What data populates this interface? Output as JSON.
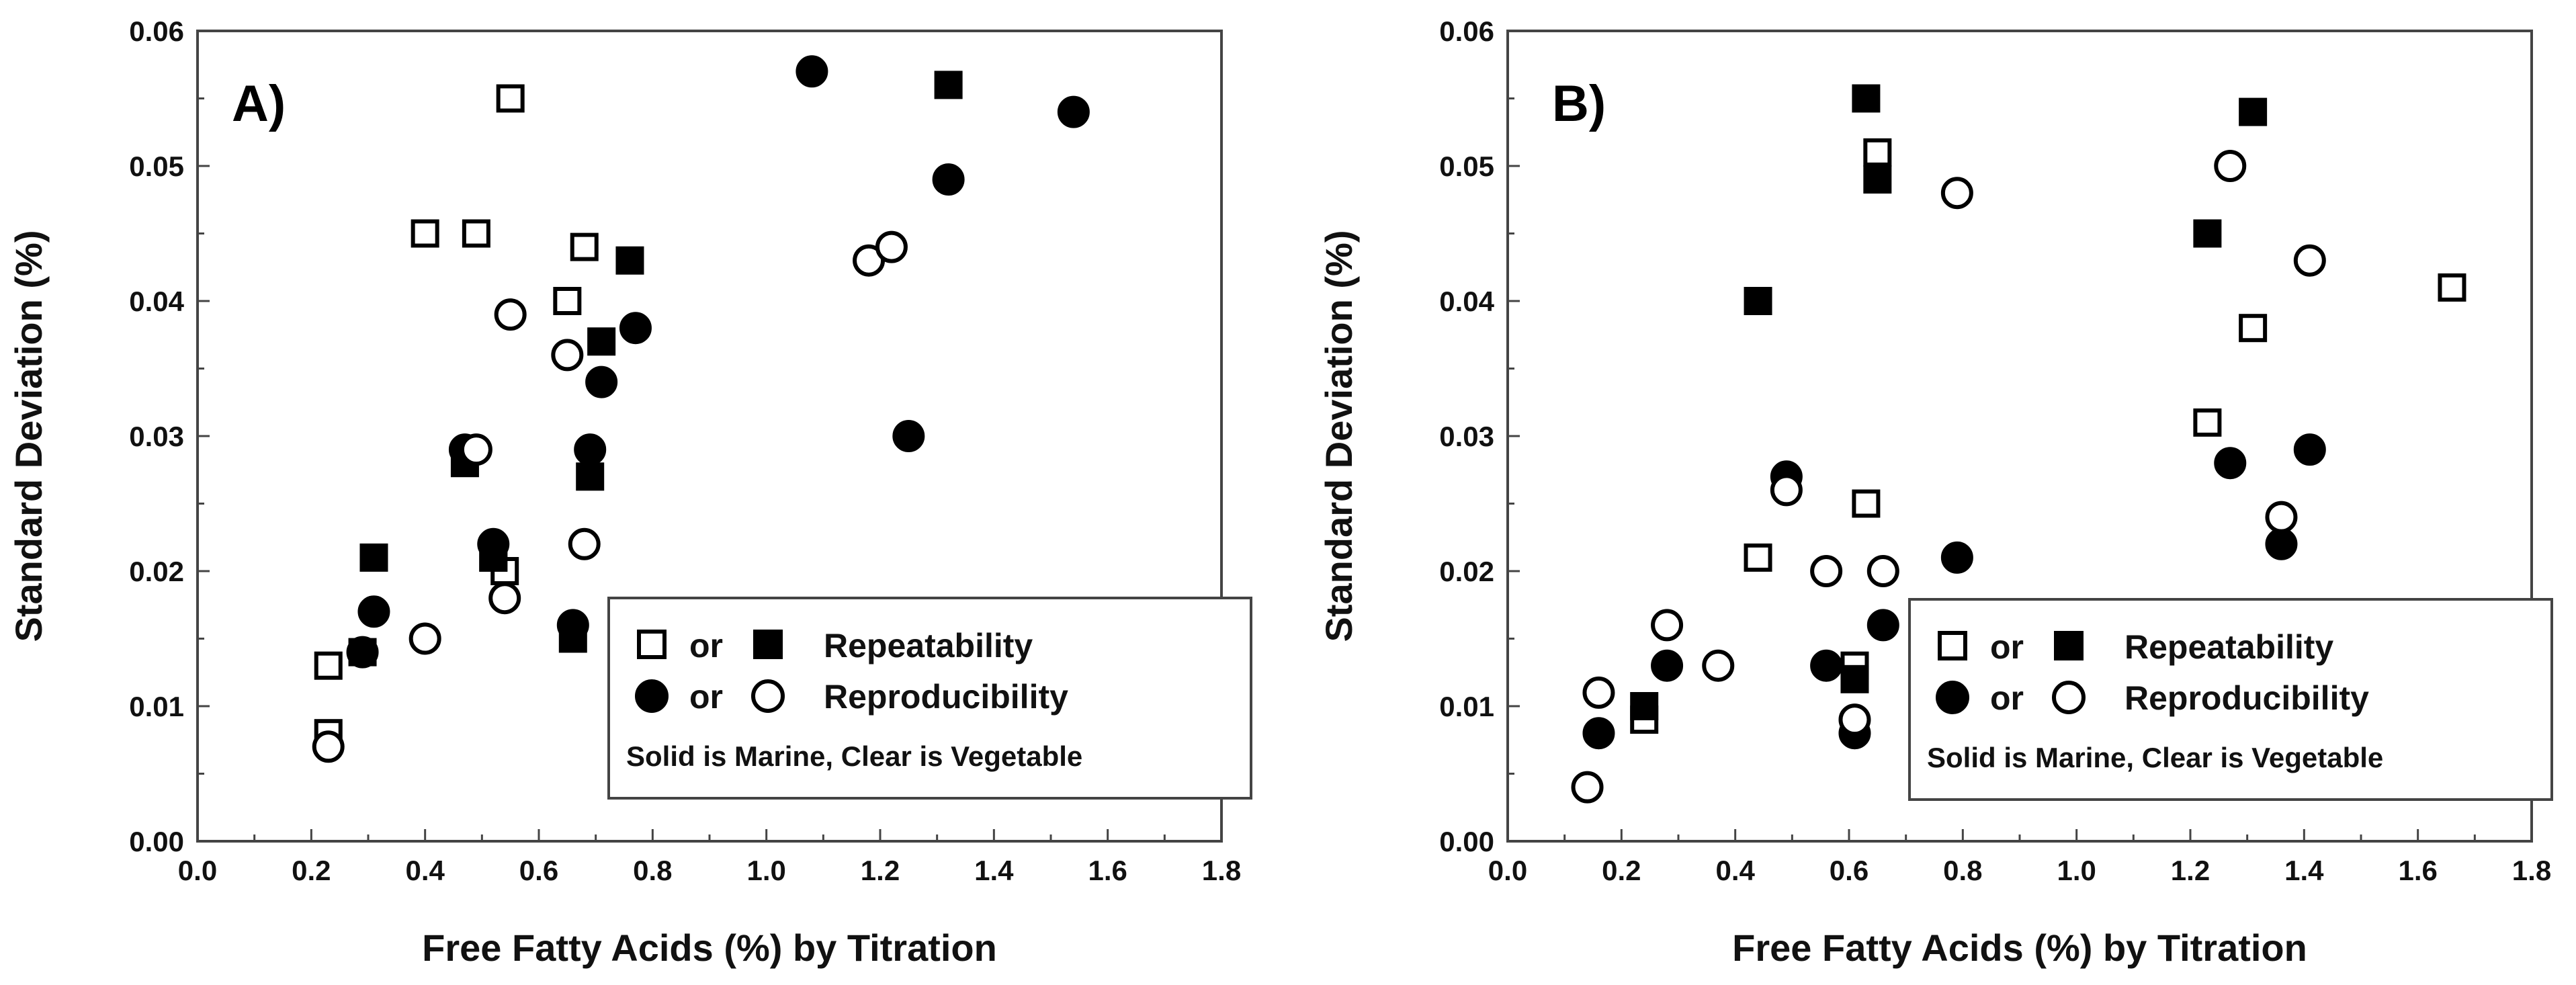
{
  "chart_data": [
    {
      "type": "scatter",
      "panel_label": "A)",
      "xlabel": "Free Fatty Acids (%) by Titration",
      "ylabel": "Standard Deviation (%)",
      "xlim": [
        0,
        1.8
      ],
      "ylim": [
        0,
        0.06
      ],
      "xticks": [
        "0.0",
        "0.2",
        "0.4",
        "0.6",
        "0.8",
        "1.0",
        "1.2",
        "1.4",
        "1.6",
        "1.8"
      ],
      "yticks": [
        "0.00",
        "0.01",
        "0.02",
        "0.03",
        "0.04",
        "0.05",
        "0.06"
      ],
      "legend": {
        "position": "bottom-right",
        "or_text": "or",
        "rows": [
          {
            "label": "Repeatability",
            "first": "square-open",
            "second": "square-filled"
          },
          {
            "label": "Reproducibility",
            "first": "circle-filled",
            "second": "circle-open"
          }
        ],
        "note": "Solid is Marine, Clear is Vegetable"
      },
      "series": [
        {
          "name": "Repeatability (Vegetable)",
          "marker": "square-open",
          "x": [
            0.23,
            0.23,
            0.4,
            0.49,
            0.55,
            0.54,
            0.52,
            0.65,
            0.68
          ],
          "y": [
            0.013,
            0.008,
            0.045,
            0.045,
            0.055,
            0.02,
            0.021,
            0.04,
            0.044
          ]
        },
        {
          "name": "Repeatability (Marine)",
          "marker": "square-filled",
          "x": [
            0.29,
            0.31,
            0.47,
            0.52,
            0.66,
            0.69,
            0.71,
            0.76,
            1.32
          ],
          "y": [
            0.014,
            0.021,
            0.028,
            0.021,
            0.015,
            0.027,
            0.037,
            0.043,
            0.056
          ]
        },
        {
          "name": "Reproducibility (Marine)",
          "marker": "circle-filled",
          "x": [
            0.29,
            0.31,
            0.47,
            0.52,
            0.66,
            0.69,
            0.71,
            0.77,
            1.08,
            1.25,
            1.32,
            1.54
          ],
          "y": [
            0.014,
            0.017,
            0.029,
            0.022,
            0.016,
            0.029,
            0.034,
            0.038,
            0.057,
            0.03,
            0.049,
            0.054
          ]
        },
        {
          "name": "Reproducibility (Vegetable)",
          "marker": "circle-open",
          "x": [
            0.23,
            0.4,
            0.49,
            0.54,
            0.55,
            0.65,
            0.68,
            1.18,
            1.22
          ],
          "y": [
            0.007,
            0.015,
            0.029,
            0.018,
            0.039,
            0.036,
            0.022,
            0.043,
            0.044
          ]
        }
      ]
    },
    {
      "type": "scatter",
      "panel_label": "B)",
      "xlabel": "Free Fatty Acids (%) by Titration",
      "ylabel": "Standard Deviation (%)",
      "xlim": [
        0,
        1.8
      ],
      "ylim": [
        0,
        0.06
      ],
      "xticks": [
        "0.0",
        "0.2",
        "0.4",
        "0.6",
        "0.8",
        "1.0",
        "1.2",
        "1.4",
        "1.6",
        "1.8"
      ],
      "yticks": [
        "0.00",
        "0.01",
        "0.02",
        "0.03",
        "0.04",
        "0.05",
        "0.06"
      ],
      "legend": {
        "position": "bottom-right",
        "or_text": "or",
        "rows": [
          {
            "label": "Repeatability",
            "first": "square-open",
            "second": "square-filled"
          },
          {
            "label": "Reproducibility",
            "first": "circle-filled",
            "second": "circle-open"
          }
        ],
        "note": "Solid is Marine, Clear is Vegetable"
      },
      "series": [
        {
          "name": "Repeatability (Vegetable)",
          "marker": "square-open",
          "x": [
            0.24,
            0.44,
            0.63,
            0.61,
            0.65,
            1.23,
            1.31,
            1.66
          ],
          "y": [
            0.009,
            0.021,
            0.025,
            0.013,
            0.051,
            0.031,
            0.038,
            0.041
          ]
        },
        {
          "name": "Repeatability (Marine)",
          "marker": "square-filled",
          "x": [
            0.24,
            0.44,
            0.61,
            0.63,
            0.65,
            1.23,
            1.31
          ],
          "y": [
            0.01,
            0.04,
            0.012,
            0.055,
            0.049,
            0.045,
            0.054
          ]
        },
        {
          "name": "Reproducibility (Marine)",
          "marker": "circle-filled",
          "x": [
            0.16,
            0.28,
            0.49,
            0.56,
            0.61,
            0.66,
            0.79,
            1.27,
            1.36,
            1.41
          ],
          "y": [
            0.008,
            0.013,
            0.027,
            0.013,
            0.008,
            0.016,
            0.021,
            0.028,
            0.022,
            0.029
          ]
        },
        {
          "name": "Reproducibility (Vegetable)",
          "marker": "circle-open",
          "x": [
            0.14,
            0.16,
            0.28,
            0.37,
            0.49,
            0.56,
            0.61,
            0.66,
            0.79,
            1.27,
            1.36,
            1.41
          ],
          "y": [
            0.004,
            0.011,
            0.016,
            0.013,
            0.026,
            0.02,
            0.009,
            0.02,
            0.048,
            0.05,
            0.024,
            0.043
          ]
        }
      ]
    }
  ]
}
